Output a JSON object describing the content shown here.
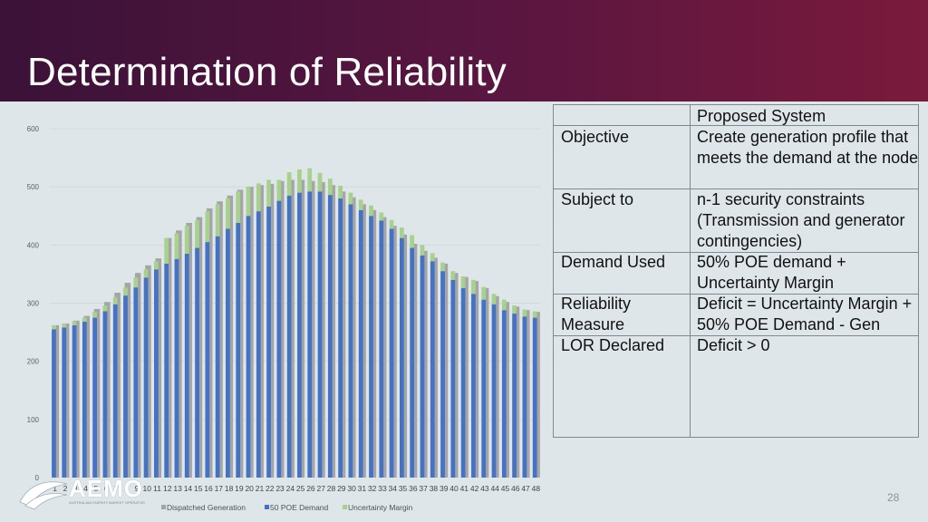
{
  "title": "Determination of Reliability",
  "page_number": "28",
  "logo": {
    "name": "AEMO",
    "subtext": "AUSTRALIAN ENERGY MARKET OPERATOR"
  },
  "table": {
    "header": "Proposed System",
    "rows": [
      {
        "label": "Objective",
        "value": "Create generation profile that meets the demand at the node"
      },
      {
        "label": "Subject to",
        "value": "n-1 security constraints (Transmission and generator contingencies)"
      },
      {
        "label": "Demand Used",
        "value": "50% POE demand + Uncertainty Margin"
      },
      {
        "label": "Reliability Measure",
        "value": "Deficit = Uncertainty Margin + 50% POE Demand  - Gen"
      },
      {
        "label": "LOR Declared",
        "value": "Deficit > 0"
      }
    ]
  },
  "chart_data": {
    "type": "bar",
    "categories": [
      "1",
      "2",
      "3",
      "4",
      "5",
      "6",
      "7",
      "8",
      "9",
      "10",
      "11",
      "12",
      "13",
      "14",
      "15",
      "16",
      "17",
      "18",
      "19",
      "20",
      "21",
      "22",
      "23",
      "24",
      "25",
      "26",
      "27",
      "28",
      "29",
      "30",
      "31",
      "32",
      "33",
      "34",
      "35",
      "36",
      "37",
      "38",
      "39",
      "40",
      "41",
      "42",
      "43",
      "44",
      "45",
      "46",
      "47",
      "48"
    ],
    "ylim": [
      0,
      600
    ],
    "yticks": [
      0,
      100,
      200,
      300,
      400,
      500,
      600
    ],
    "grid": true,
    "legend_position": "bottom",
    "series": [
      {
        "name": "Dispatched Generation",
        "color": "#a5a5a5",
        "values": [
          262,
          265,
          270,
          278,
          290,
          302,
          318,
          335,
          352,
          365,
          377,
          412,
          425,
          438,
          448,
          463,
          475,
          485,
          495,
          500,
          503,
          505,
          510,
          512,
          512,
          510,
          508,
          503,
          492,
          482,
          470,
          460,
          448,
          433,
          418,
          402,
          390,
          378,
          368,
          352,
          345,
          338,
          326,
          312,
          302,
          294,
          288,
          285
        ]
      },
      {
        "name": "50 POE Demand",
        "color": "#4472c4",
        "values": [
          255,
          258,
          262,
          268,
          275,
          286,
          298,
          313,
          327,
          344,
          358,
          368,
          376,
          385,
          395,
          405,
          415,
          428,
          438,
          450,
          458,
          466,
          476,
          485,
          490,
          492,
          492,
          486,
          480,
          470,
          460,
          450,
          442,
          428,
          412,
          395,
          382,
          372,
          355,
          340,
          326,
          316,
          306,
          298,
          288,
          282,
          277,
          275
        ]
      },
      {
        "name": "Uncertainty Margin",
        "color": "#a9d18e",
        "values": [
          7,
          7,
          7,
          7,
          10,
          10,
          12,
          14,
          17,
          14,
          14,
          44,
          44,
          48,
          48,
          53,
          55,
          52,
          54,
          50,
          48,
          46,
          36,
          40,
          40,
          40,
          32,
          28,
          22,
          20,
          18,
          18,
          14,
          15,
          18,
          22,
          18,
          14,
          15,
          15,
          20,
          24,
          22,
          18,
          18,
          14,
          12,
          11
        ]
      }
    ]
  }
}
